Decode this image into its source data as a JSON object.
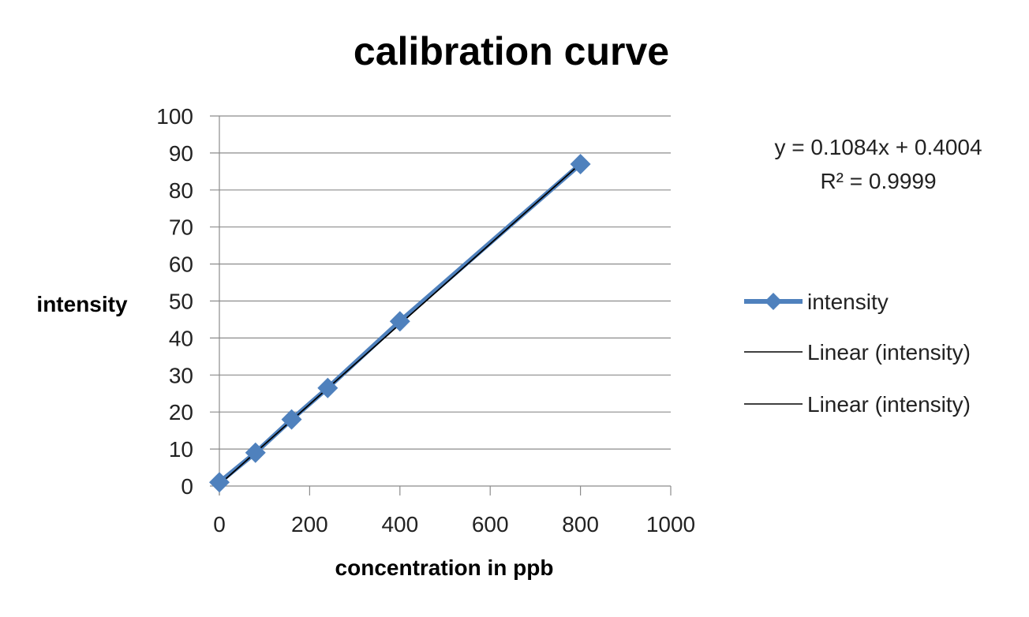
{
  "chart_data": {
    "type": "scatter",
    "title": "calibration curve",
    "xlabel": "concentration in ppb",
    "ylabel": "intensity",
    "xlim": [
      0,
      1000
    ],
    "ylim": [
      0,
      100
    ],
    "xticks": [
      "0",
      "200",
      "400",
      "600",
      "800",
      "1000"
    ],
    "yticks": [
      "0",
      "10",
      "20",
      "30",
      "40",
      "50",
      "60",
      "70",
      "80",
      "90",
      "100"
    ],
    "grid": "horizontal",
    "legend_position": "right",
    "series": [
      {
        "name": "intensity",
        "color": "#4f81bd",
        "marker": "diamond",
        "x": [
          0,
          80,
          160,
          240,
          400,
          800
        ],
        "y": [
          1,
          9,
          18,
          26.5,
          44.5,
          87
        ]
      }
    ],
    "trendlines": [
      {
        "name": "Linear (intensity)",
        "color": "#000000",
        "slope": 0.1084,
        "intercept": 0.4004,
        "x_range": [
          0,
          800
        ]
      },
      {
        "name": "Linear (intensity)",
        "color": "#000000",
        "slope": 0.1084,
        "intercept": 0.4004,
        "x_range": [
          0,
          800
        ]
      }
    ],
    "equation_lines": [
      "y = 0.1084x + 0.4004",
      "R² = 0.9999"
    ]
  }
}
